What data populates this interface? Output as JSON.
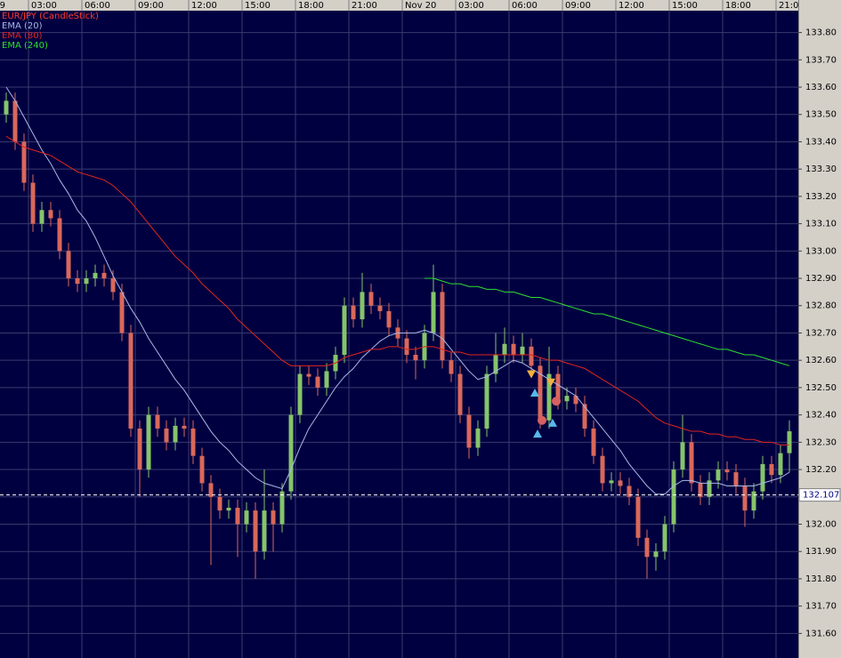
{
  "chart_data": {
    "type": "candlestick",
    "name": "EUR/JPY (CandleStick)",
    "name_color": "#ff3a2a",
    "up_color": "#86c46a",
    "down_color": "#d9685a",
    "grid": true,
    "xlim": [
      1.4,
      46.25
    ],
    "xticks": [
      {
        "value": 0,
        "label": "9"
      },
      {
        "value": 3,
        "label": "03:00"
      },
      {
        "value": 6,
        "label": "06:00"
      },
      {
        "value": 9,
        "label": "09:00"
      },
      {
        "value": 12,
        "label": "12:00"
      },
      {
        "value": 15,
        "label": "15:00"
      },
      {
        "value": 18,
        "label": "18:00"
      },
      {
        "value": 21,
        "label": "21:00"
      },
      {
        "value": 24,
        "label": "Nov 20"
      },
      {
        "value": 27,
        "label": "03:00"
      },
      {
        "value": 30,
        "label": "06:00"
      },
      {
        "value": 33,
        "label": "09:00"
      },
      {
        "value": 36,
        "label": "12:00"
      },
      {
        "value": 39,
        "label": "15:00"
      },
      {
        "value": 42,
        "label": "18:00"
      },
      {
        "value": 45,
        "label": "21:00"
      }
    ],
    "ylim": [
      131.51,
      133.88
    ],
    "yticks": [
      {
        "value": 133.8,
        "label": "133.80"
      },
      {
        "value": 133.7,
        "label": "133.70"
      },
      {
        "value": 133.6,
        "label": "133.60"
      },
      {
        "value": 133.5,
        "label": "133.50"
      },
      {
        "value": 133.4,
        "label": "133.40"
      },
      {
        "value": 133.3,
        "label": "133.30"
      },
      {
        "value": 133.2,
        "label": "133.20"
      },
      {
        "value": 133.1,
        "label": "133.10"
      },
      {
        "value": 133.0,
        "label": "133.00"
      },
      {
        "value": 132.9,
        "label": "132.90"
      },
      {
        "value": 132.8,
        "label": "132.80"
      },
      {
        "value": 132.7,
        "label": "132.70"
      },
      {
        "value": 132.6,
        "label": "132.60"
      },
      {
        "value": 132.5,
        "label": "132.50"
      },
      {
        "value": 132.4,
        "label": "132.40"
      },
      {
        "value": 132.3,
        "label": "132.30"
      },
      {
        "value": 132.2,
        "label": "132.20"
      },
      {
        "value": 132.1,
        "label": "132.10"
      },
      {
        "value": 132.0,
        "label": "132.00"
      },
      {
        "value": 131.9,
        "label": "131.90"
      },
      {
        "value": 131.8,
        "label": "131.80"
      },
      {
        "value": 131.7,
        "label": "131.70"
      },
      {
        "value": 131.6,
        "label": "131.60"
      }
    ],
    "last_price": 132.107,
    "x": [
      1.75,
      2.25,
      2.75,
      3.25,
      3.75,
      4.25,
      4.75,
      5.25,
      5.75,
      6.25,
      6.75,
      7.25,
      7.75,
      8.25,
      8.75,
      9.25,
      9.75,
      10.25,
      10.75,
      11.25,
      11.75,
      12.25,
      12.75,
      13.25,
      13.75,
      14.25,
      14.75,
      15.25,
      15.75,
      16.25,
      16.75,
      17.25,
      17.75,
      18.25,
      18.75,
      19.25,
      19.75,
      20.25,
      20.75,
      21.25,
      21.75,
      22.25,
      22.75,
      23.25,
      23.75,
      24.25,
      24.75,
      25.25,
      25.75,
      26.25,
      26.75,
      27.25,
      27.75,
      28.25,
      28.75,
      29.25,
      29.75,
      30.25,
      30.75,
      31.25,
      31.75,
      32.25,
      32.75,
      33.25,
      33.75,
      34.25,
      34.75,
      35.25,
      35.75,
      36.25,
      36.75,
      37.25,
      37.75,
      38.25,
      38.75,
      39.25,
      39.75,
      40.25,
      40.75,
      41.25,
      41.75,
      42.25,
      42.75,
      43.25,
      43.75,
      44.25,
      44.75,
      45.25,
      45.75
    ],
    "open": [
      133.5,
      133.55,
      133.4,
      133.25,
      133.1,
      133.15,
      133.12,
      133.0,
      132.9,
      132.88,
      132.9,
      132.92,
      132.9,
      132.85,
      132.7,
      132.35,
      132.2,
      132.4,
      132.35,
      132.3,
      132.36,
      132.35,
      132.25,
      132.15,
      132.1,
      132.05,
      132.06,
      132.0,
      132.05,
      131.9,
      132.05,
      132.0,
      132.12,
      132.4,
      132.55,
      132.54,
      132.5,
      132.56,
      132.62,
      132.8,
      132.75,
      132.85,
      132.8,
      132.78,
      132.72,
      132.68,
      132.62,
      132.6,
      132.7,
      132.85,
      132.6,
      132.55,
      132.4,
      132.28,
      132.35,
      132.55,
      132.62,
      132.66,
      132.62,
      132.65,
      132.58,
      132.38,
      132.55,
      132.45,
      132.47,
      132.44,
      132.35,
      132.25,
      132.15,
      132.16,
      132.14,
      132.1,
      131.95,
      131.88,
      131.9,
      132.0,
      132.2,
      132.3,
      132.15,
      132.1,
      132.16,
      132.2,
      132.19,
      132.14,
      132.05,
      132.12,
      132.22,
      132.18,
      132.26
    ],
    "high": [
      133.58,
      133.58,
      133.43,
      133.28,
      133.18,
      133.18,
      133.15,
      133.03,
      132.93,
      132.93,
      132.95,
      132.95,
      132.93,
      132.88,
      132.73,
      132.38,
      132.43,
      132.43,
      132.38,
      132.39,
      132.39,
      132.38,
      132.28,
      132.18,
      132.13,
      132.09,
      132.09,
      132.08,
      132.08,
      132.2,
      132.08,
      132.15,
      132.43,
      132.58,
      132.58,
      132.57,
      132.59,
      132.65,
      132.83,
      132.83,
      132.92,
      132.88,
      132.83,
      132.81,
      132.75,
      132.71,
      132.65,
      132.73,
      132.95,
      132.88,
      132.63,
      132.58,
      132.43,
      132.38,
      132.58,
      132.7,
      132.72,
      132.69,
      132.7,
      132.68,
      132.61,
      132.65,
      132.58,
      132.5,
      132.5,
      132.47,
      132.38,
      132.28,
      132.19,
      132.19,
      132.17,
      132.13,
      131.98,
      131.93,
      132.03,
      132.23,
      132.4,
      132.33,
      132.18,
      132.19,
      132.23,
      132.23,
      132.22,
      132.17,
      132.15,
      132.25,
      132.25,
      132.29,
      132.38
    ],
    "low": [
      133.47,
      133.37,
      133.22,
      133.07,
      133.07,
      133.09,
      132.97,
      132.87,
      132.85,
      132.85,
      132.87,
      132.87,
      132.82,
      132.67,
      132.32,
      132.1,
      132.17,
      132.32,
      132.27,
      132.27,
      132.32,
      132.22,
      132.12,
      131.85,
      132.02,
      132.02,
      131.88,
      131.97,
      131.8,
      131.87,
      131.9,
      131.97,
      132.09,
      132.37,
      132.51,
      132.47,
      132.47,
      132.53,
      132.59,
      132.72,
      132.72,
      132.77,
      132.75,
      132.69,
      132.65,
      132.59,
      132.53,
      132.57,
      132.67,
      132.57,
      132.52,
      132.37,
      132.24,
      132.25,
      132.32,
      132.52,
      132.59,
      132.59,
      132.59,
      132.55,
      132.35,
      132.35,
      132.42,
      132.42,
      132.41,
      132.32,
      132.22,
      132.12,
      132.12,
      132.11,
      132.07,
      131.92,
      131.8,
      131.83,
      131.87,
      131.97,
      132.17,
      132.12,
      132.07,
      132.07,
      132.13,
      132.16,
      132.11,
      131.99,
      132.02,
      132.09,
      132.15,
      132.15,
      132.19
    ],
    "close": [
      133.55,
      133.4,
      133.25,
      133.1,
      133.15,
      133.12,
      133.0,
      132.9,
      132.88,
      132.9,
      132.92,
      132.9,
      132.85,
      132.7,
      132.35,
      132.2,
      132.4,
      132.35,
      132.3,
      132.36,
      132.35,
      132.25,
      132.15,
      132.1,
      132.05,
      132.06,
      132.0,
      132.05,
      131.9,
      132.05,
      132.0,
      132.12,
      132.4,
      132.55,
      132.54,
      132.5,
      132.56,
      132.62,
      132.8,
      132.75,
      132.85,
      132.8,
      132.78,
      132.72,
      132.68,
      132.62,
      132.6,
      132.7,
      132.85,
      132.6,
      132.55,
      132.4,
      132.28,
      132.35,
      132.55,
      132.62,
      132.66,
      132.62,
      132.65,
      132.58,
      132.38,
      132.55,
      132.45,
      132.47,
      132.44,
      132.35,
      132.25,
      132.15,
      132.16,
      132.14,
      132.1,
      131.95,
      131.88,
      131.9,
      132.0,
      132.2,
      132.3,
      132.15,
      132.1,
      132.16,
      132.2,
      132.19,
      132.14,
      132.05,
      132.12,
      132.22,
      132.18,
      132.26,
      132.34
    ],
    "series": [
      {
        "name": "EMA (20)",
        "color": "#a9b8e8",
        "values": [
          133.6,
          133.55,
          133.49,
          133.43,
          133.37,
          133.32,
          133.26,
          133.21,
          133.15,
          133.11,
          133.05,
          132.98,
          132.91,
          132.85,
          132.79,
          132.74,
          132.68,
          132.63,
          132.58,
          132.53,
          132.49,
          132.44,
          132.39,
          132.34,
          132.3,
          132.27,
          132.23,
          132.2,
          132.17,
          132.15,
          132.14,
          132.13,
          132.2,
          132.28,
          132.35,
          132.4,
          132.45,
          132.5,
          132.54,
          132.57,
          132.61,
          132.64,
          132.67,
          132.69,
          132.7,
          132.7,
          132.7,
          132.71,
          132.7,
          132.68,
          132.64,
          132.6,
          132.56,
          132.53,
          132.54,
          132.56,
          132.58,
          132.6,
          132.59,
          132.57,
          132.55,
          132.53,
          132.51,
          132.49,
          132.47,
          132.43,
          132.39,
          132.35,
          132.31,
          132.27,
          132.22,
          132.18,
          132.14,
          132.11,
          132.11,
          132.14,
          132.16,
          132.16,
          132.15,
          132.15,
          132.15,
          132.14,
          132.14,
          132.14,
          132.14,
          132.15,
          132.16,
          132.17,
          132.19
        ]
      },
      {
        "name": "EMA (80)",
        "color": "#e0261c",
        "values": [
          133.42,
          133.4,
          133.38,
          133.37,
          133.36,
          133.35,
          133.33,
          133.31,
          133.29,
          133.28,
          133.27,
          133.26,
          133.24,
          133.21,
          133.18,
          133.14,
          133.1,
          133.06,
          133.02,
          132.98,
          132.95,
          132.92,
          132.88,
          132.85,
          132.82,
          132.79,
          132.75,
          132.72,
          132.69,
          132.66,
          132.63,
          132.6,
          132.58,
          132.58,
          132.58,
          132.58,
          132.58,
          132.59,
          132.61,
          132.62,
          132.63,
          132.64,
          132.64,
          132.65,
          132.65,
          132.64,
          132.64,
          132.65,
          132.65,
          132.64,
          132.63,
          132.63,
          132.62,
          132.62,
          132.62,
          132.62,
          132.62,
          132.62,
          132.62,
          132.62,
          132.61,
          132.6,
          132.6,
          132.59,
          132.58,
          132.57,
          132.55,
          132.53,
          132.51,
          132.49,
          132.47,
          132.45,
          132.42,
          132.39,
          132.37,
          132.36,
          132.35,
          132.34,
          132.34,
          132.33,
          132.33,
          132.32,
          132.32,
          132.31,
          132.31,
          132.3,
          132.3,
          132.29,
          132.29
        ]
      },
      {
        "name": "EMA (240)",
        "color": "#2fe02f",
        "values": [
          null,
          null,
          null,
          null,
          null,
          null,
          null,
          null,
          null,
          null,
          null,
          null,
          null,
          null,
          null,
          null,
          null,
          null,
          null,
          null,
          null,
          null,
          null,
          null,
          null,
          null,
          null,
          null,
          null,
          null,
          null,
          null,
          null,
          null,
          null,
          null,
          null,
          null,
          null,
          null,
          null,
          null,
          null,
          null,
          null,
          null,
          null,
          132.9,
          132.9,
          132.89,
          132.88,
          132.88,
          132.87,
          132.87,
          132.86,
          132.86,
          132.85,
          132.85,
          132.84,
          132.83,
          132.83,
          132.82,
          132.81,
          132.8,
          132.79,
          132.78,
          132.77,
          132.77,
          132.76,
          132.75,
          132.74,
          132.73,
          132.72,
          132.71,
          132.7,
          132.69,
          132.68,
          132.67,
          132.66,
          132.65,
          132.64,
          132.64,
          132.63,
          132.62,
          132.62,
          132.61,
          132.6,
          132.59,
          132.58
        ]
      }
    ],
    "markers": [
      {
        "shape": "down",
        "color": "#f0b040",
        "x": 31.25,
        "y": 132.55
      },
      {
        "shape": "up",
        "color": "#58b8e8",
        "x": 31.45,
        "y": 132.48
      },
      {
        "shape": "up",
        "color": "#58b8e8",
        "x": 31.6,
        "y": 132.33
      },
      {
        "shape": "circle",
        "color": "#d86060",
        "x": 31.85,
        "y": 132.38
      },
      {
        "shape": "down",
        "color": "#f0b040",
        "x": 32.35,
        "y": 132.52
      },
      {
        "shape": "up",
        "color": "#58b8e8",
        "x": 32.45,
        "y": 132.37
      },
      {
        "shape": "circle",
        "color": "#d86060",
        "x": 32.65,
        "y": 132.45
      }
    ]
  }
}
